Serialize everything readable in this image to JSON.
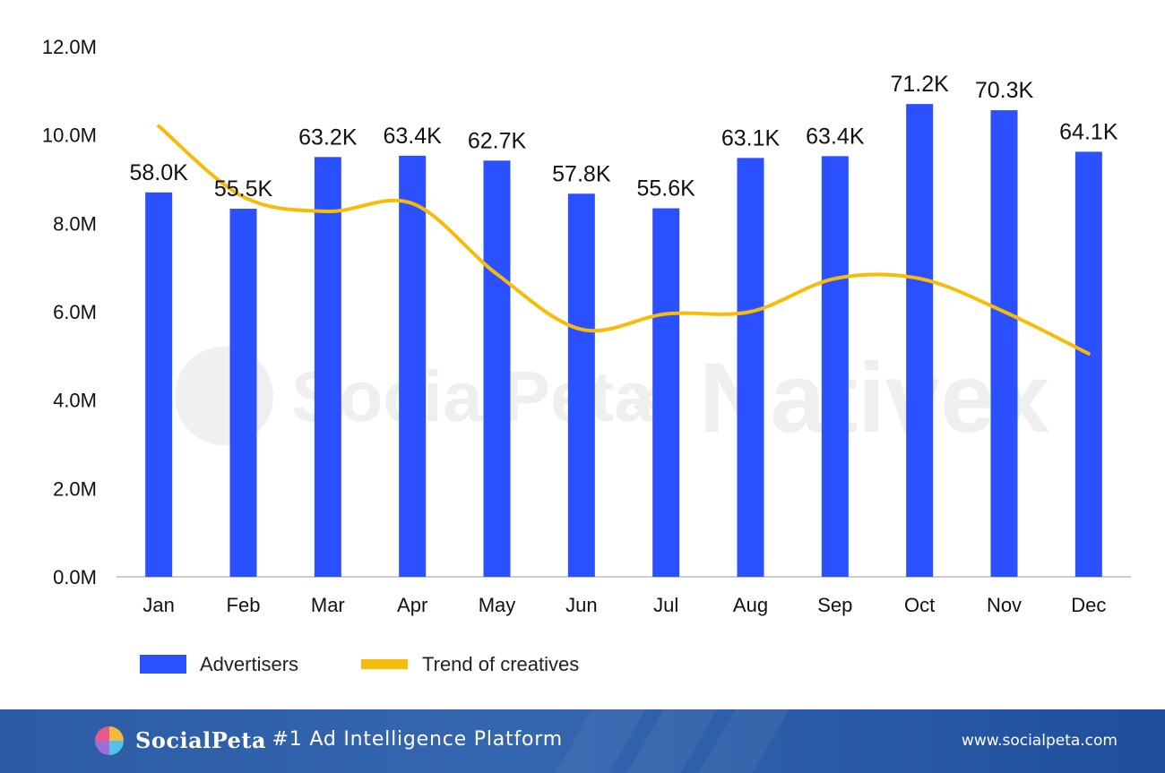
{
  "chart_data": {
    "type": "bar",
    "categories": [
      "Jan",
      "Feb",
      "Mar",
      "Apr",
      "May",
      "Jun",
      "Jul",
      "Aug",
      "Sep",
      "Oct",
      "Nov",
      "Dec"
    ],
    "series": [
      {
        "name": "Advertisers",
        "kind": "bar",
        "color": "#2a50ff",
        "values": [
          8.7,
          8.33,
          9.5,
          9.53,
          9.42,
          8.67,
          8.34,
          9.48,
          9.52,
          10.7,
          10.56,
          9.62
        ],
        "labels": [
          "58.0K",
          "55.5K",
          "63.2K",
          "63.4K",
          "62.7K",
          "57.8K",
          "55.6K",
          "63.1K",
          "63.4K",
          "71.2K",
          "70.3K",
          "64.1K"
        ]
      },
      {
        "name": "Trend of creatives",
        "kind": "line",
        "color": "#f8bc06",
        "values": [
          10.2,
          8.6,
          8.27,
          8.45,
          6.85,
          5.6,
          5.95,
          6.0,
          6.75,
          6.75,
          6.0,
          5.05
        ]
      }
    ],
    "yticks": [
      "0.0M",
      "2.0M",
      "4.0M",
      "6.0M",
      "8.0M",
      "10.0M",
      "12.0M"
    ],
    "ylim": [
      0,
      12
    ],
    "title": "",
    "xlabel": "",
    "ylabel": "",
    "legend_position": "bottom-left"
  },
  "watermark": {
    "left": "SocialPeta",
    "separator": "×",
    "right": "Nativex"
  },
  "footer": {
    "brand": "SocialPeta",
    "tagline": "- #1 Ad Intelligence Platform",
    "url": "www.socialpeta.com",
    "logo_colors": [
      "#e85a8a",
      "#9b6fd6",
      "#4fc3e8",
      "#f5b942"
    ]
  }
}
